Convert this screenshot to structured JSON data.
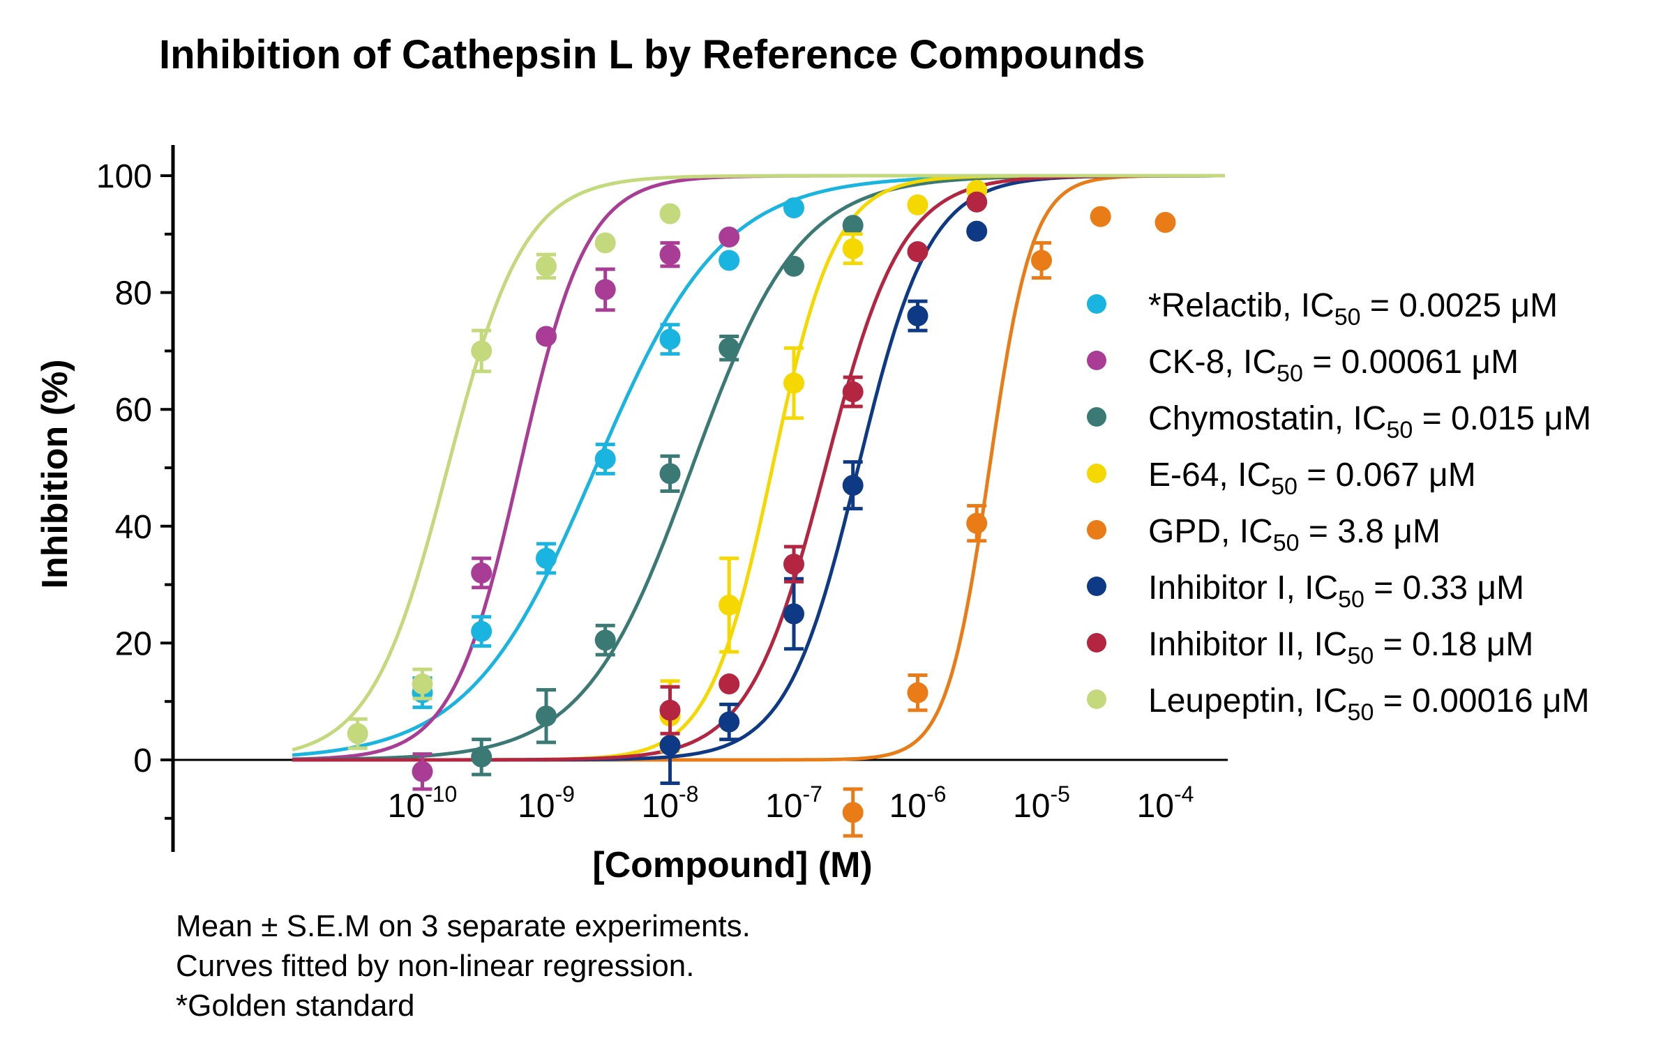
{
  "footnotes": [
    "Mean ± S.E.M on 3 separate experiments.",
    "Curves fitted by non-linear regression.",
    "*Golden standard"
  ],
  "chart_data": {
    "type": "scatter",
    "title": "Inhibition of Cathepsin L by Reference Compounds",
    "xlabel": "[Compound] (M)",
    "ylabel": "Inhibition (%)",
    "x_scale": "log",
    "xlim": [
      1e-11,
      0.0003
    ],
    "ylim": [
      -15,
      105
    ],
    "x_ticks": [
      {
        "value": 1e-10,
        "base": "10",
        "exp": "-10"
      },
      {
        "value": 1e-09,
        "base": "10",
        "exp": "-9"
      },
      {
        "value": 1e-08,
        "base": "10",
        "exp": "-8"
      },
      {
        "value": 1e-07,
        "base": "10",
        "exp": "-7"
      },
      {
        "value": 1e-06,
        "base": "10",
        "exp": "-6"
      },
      {
        "value": 1e-05,
        "base": "10",
        "exp": "-5"
      },
      {
        "value": 0.0001,
        "base": "10",
        "exp": "-4"
      }
    ],
    "y_ticks": [
      0,
      20,
      40,
      60,
      80,
      100
    ],
    "legend_position": "right",
    "ic50_unit": "μM",
    "series": [
      {
        "name": "*Relactib",
        "label_prefix": "*Relactib, IC",
        "label_sub": "50",
        "label_suffix": " = 0.0025 μM",
        "color": "#1ab4e0",
        "ic50": 0.0025,
        "hill": 0.85,
        "x": [
          1e-10,
          3e-10,
          1e-09,
          3e-09,
          1e-08,
          3e-08,
          1e-07
        ],
        "y": [
          11.5,
          22,
          34.5,
          51.5,
          72,
          85.5,
          94.5
        ],
        "err": [
          2.5,
          2.5,
          2.5,
          2.5,
          2.5,
          1,
          1
        ]
      },
      {
        "name": "CK-8",
        "label_prefix": "CK-8, IC",
        "label_sub": "50",
        "label_suffix": " = 0.00061 μM",
        "color": "#a93d96",
        "ic50": 0.00061,
        "hill": 1.6,
        "x": [
          1e-10,
          3e-10,
          1e-09,
          3e-09,
          1e-08,
          3e-08
        ],
        "y": [
          -2,
          32,
          72.5,
          80.5,
          86.5,
          89.5
        ],
        "err": [
          3,
          2.5,
          1,
          3.5,
          2,
          1
        ]
      },
      {
        "name": "Chymostatin",
        "label_prefix": "Chymostatin, IC",
        "label_sub": "50",
        "label_suffix": " = 0.015 μM",
        "color": "#3b7a74",
        "ic50": 0.015,
        "hill": 1.0,
        "x": [
          3e-10,
          1e-09,
          3e-09,
          1e-08,
          3e-08,
          1e-07,
          3e-07
        ],
        "y": [
          0.5,
          7.5,
          20.5,
          49,
          70.5,
          84.5,
          91.5
        ],
        "err": [
          3,
          4.5,
          2.5,
          3,
          2,
          1,
          1
        ]
      },
      {
        "name": "E-64",
        "label_prefix": "E-64,  IC",
        "label_sub": "50",
        "label_suffix": " = 0.067 μM",
        "color": "#f5d800",
        "ic50": 0.067,
        "hill": 1.7,
        "x": [
          1e-08,
          3e-08,
          1e-07,
          3e-07,
          1e-06,
          3e-06
        ],
        "y": [
          7.5,
          26.5,
          64.5,
          87.5,
          95,
          97.5
        ],
        "err": [
          6,
          8,
          6,
          2.5,
          1,
          1
        ]
      },
      {
        "name": "GPD",
        "label_prefix": "GPD,  IC",
        "label_sub": "50",
        "label_suffix": " = 3.8 μM",
        "color": "#ea7c17",
        "ic50": 3.8,
        "hill": 2.5,
        "x": [
          3e-07,
          1e-06,
          3e-06,
          1e-05,
          3e-05,
          0.0001
        ],
        "y": [
          -9,
          11.5,
          40.5,
          85.5,
          93,
          92
        ],
        "err": [
          4,
          3,
          3,
          3,
          1,
          1
        ]
      },
      {
        "name": "Inhibitor I",
        "label_prefix": "Inhibitor I,  IC",
        "label_sub": "50",
        "label_suffix": " = 0.33 μM",
        "color": "#0e3a85",
        "ic50": 0.33,
        "hill": 1.5,
        "x": [
          1e-08,
          3e-08,
          1e-07,
          3e-07,
          1e-06,
          3e-06
        ],
        "y": [
          2.5,
          6.5,
          25,
          47,
          76,
          90.5
        ],
        "err": [
          6.5,
          3,
          6,
          4,
          2.5,
          1
        ]
      },
      {
        "name": "Inhibitor II",
        "label_prefix": "Inhibitor II,  IC",
        "label_sub": "50",
        "label_suffix": " = 0.18 μM",
        "color": "#b32540",
        "ic50": 0.18,
        "hill": 1.4,
        "x": [
          1e-08,
          3e-08,
          1e-07,
          3e-07,
          1e-06,
          3e-06
        ],
        "y": [
          8.5,
          13,
          33.5,
          63,
          87,
          95.5
        ],
        "err": [
          4,
          1,
          3,
          2.5,
          1,
          1
        ]
      },
      {
        "name": "Leupeptin",
        "label_prefix": "Leupeptin,  IC",
        "label_sub": "50",
        "label_suffix": " = 0.00016 μM",
        "color": "#c3d97c",
        "ic50": 0.00016,
        "hill": 1.4,
        "x": [
          3e-11,
          1e-10,
          3e-10,
          1e-09,
          3e-09,
          1e-08
        ],
        "y": [
          4.5,
          13,
          70,
          84.5,
          88.5,
          93.5
        ],
        "err": [
          2.5,
          2.5,
          3.5,
          2,
          1,
          1
        ]
      }
    ]
  }
}
